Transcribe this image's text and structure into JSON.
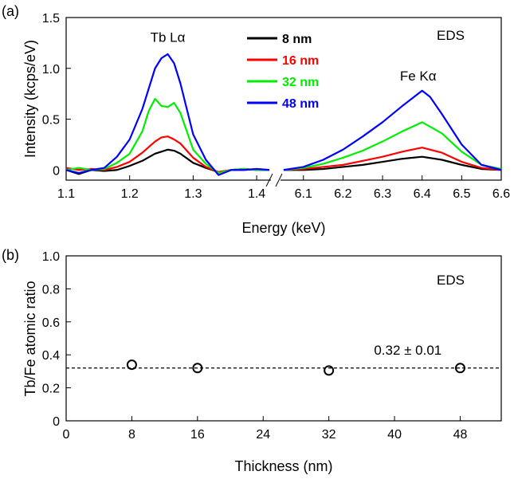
{
  "chart_data": [
    {
      "type": "line",
      "panel_label": "(a)",
      "xlabel": "Energy (keV)",
      "ylabel": "Intensity (kcps/eV)",
      "annotation": "EDS",
      "peak_labels": [
        {
          "text": "Tb Lα",
          "x": 1.26,
          "y": 1.26
        },
        {
          "text": "Fe Kα",
          "x": 6.39,
          "y": 0.88
        }
      ],
      "ylim": [
        -0.1,
        1.5
      ],
      "yticks": [
        0,
        0.5,
        1.0,
        1.5
      ],
      "ytick_labels": [
        "0",
        "0.5",
        "1.0",
        "1.5"
      ],
      "broken_axis": true,
      "segments": [
        {
          "xlim": [
            1.1,
            1.43
          ],
          "xticks": [
            1.1,
            1.2,
            1.3,
            1.4
          ],
          "xtick_labels": [
            "1.1",
            "1.2",
            "1.3",
            "1.4"
          ]
        },
        {
          "xlim": [
            6.03,
            6.6
          ],
          "xticks": [
            6.1,
            6.2,
            6.3,
            6.4,
            6.5,
            6.6
          ],
          "xtick_labels": [
            "6.1",
            "6.2",
            "6.3",
            "6.4",
            "6.5",
            "6.6"
          ]
        }
      ],
      "legend_position": "top-center",
      "series": [
        {
          "name": "8 nm",
          "color": "#000000",
          "low_x": [
            1.1,
            1.12,
            1.14,
            1.16,
            1.18,
            1.2,
            1.22,
            1.24,
            1.25,
            1.26,
            1.27,
            1.28,
            1.3,
            1.32,
            1.34,
            1.36,
            1.38,
            1.4,
            1.42
          ],
          "low_y": [
            0.0,
            -0.04,
            0.0,
            -0.01,
            0.0,
            0.04,
            0.09,
            0.16,
            0.18,
            0.2,
            0.19,
            0.16,
            0.07,
            0.02,
            -0.02,
            0.0,
            0.01,
            0.0,
            0.0
          ],
          "high_x": [
            6.05,
            6.1,
            6.15,
            6.2,
            6.25,
            6.3,
            6.35,
            6.4,
            6.45,
            6.5,
            6.55,
            6.6
          ],
          "high_y": [
            0.0,
            0.0,
            0.01,
            0.03,
            0.05,
            0.08,
            0.11,
            0.13,
            0.1,
            0.05,
            0.01,
            0.0
          ]
        },
        {
          "name": "16 nm",
          "color": "#ff0000",
          "low_x": [
            1.1,
            1.12,
            1.14,
            1.16,
            1.18,
            1.2,
            1.22,
            1.24,
            1.25,
            1.26,
            1.27,
            1.28,
            1.3,
            1.32,
            1.34,
            1.36,
            1.38,
            1.4,
            1.42
          ],
          "low_y": [
            0.02,
            0.0,
            0.01,
            0.0,
            0.03,
            0.08,
            0.17,
            0.28,
            0.32,
            0.33,
            0.3,
            0.26,
            0.12,
            0.03,
            -0.02,
            0.0,
            0.0,
            0.01,
            0.0
          ],
          "high_x": [
            6.05,
            6.1,
            6.15,
            6.2,
            6.25,
            6.3,
            6.35,
            6.4,
            6.45,
            6.5,
            6.55,
            6.6
          ],
          "high_y": [
            0.0,
            0.01,
            0.03,
            0.05,
            0.09,
            0.13,
            0.18,
            0.22,
            0.17,
            0.08,
            0.02,
            0.0
          ]
        },
        {
          "name": "32 nm",
          "color": "#00ee00",
          "low_x": [
            1.1,
            1.12,
            1.14,
            1.16,
            1.18,
            1.2,
            1.22,
            1.23,
            1.24,
            1.25,
            1.26,
            1.27,
            1.28,
            1.29,
            1.3,
            1.32,
            1.34,
            1.36,
            1.38,
            1.4,
            1.42
          ],
          "low_y": [
            0.0,
            0.02,
            0.0,
            0.01,
            0.07,
            0.16,
            0.38,
            0.58,
            0.7,
            0.63,
            0.62,
            0.66,
            0.56,
            0.38,
            0.2,
            0.06,
            -0.03,
            0.0,
            0.01,
            0.0,
            0.0
          ],
          "high_x": [
            6.05,
            6.1,
            6.15,
            6.2,
            6.25,
            6.3,
            6.35,
            6.4,
            6.45,
            6.5,
            6.55,
            6.6
          ],
          "high_y": [
            0.0,
            0.02,
            0.06,
            0.12,
            0.19,
            0.28,
            0.38,
            0.47,
            0.36,
            0.18,
            0.05,
            0.01
          ]
        },
        {
          "name": "48 nm",
          "color": "#0000ff",
          "low_x": [
            1.1,
            1.12,
            1.14,
            1.16,
            1.18,
            1.2,
            1.22,
            1.24,
            1.25,
            1.26,
            1.27,
            1.28,
            1.29,
            1.3,
            1.32,
            1.34,
            1.36,
            1.38,
            1.4,
            1.42
          ],
          "low_y": [
            0.0,
            -0.03,
            0.0,
            0.02,
            0.13,
            0.3,
            0.6,
            1.0,
            1.1,
            1.14,
            1.05,
            0.85,
            0.6,
            0.35,
            0.1,
            -0.05,
            0.0,
            0.0,
            0.01,
            0.0
          ],
          "high_x": [
            6.05,
            6.1,
            6.15,
            6.2,
            6.25,
            6.3,
            6.35,
            6.4,
            6.42,
            6.45,
            6.5,
            6.55,
            6.6
          ],
          "high_y": [
            0.0,
            0.03,
            0.1,
            0.2,
            0.33,
            0.47,
            0.63,
            0.78,
            0.72,
            0.55,
            0.25,
            0.05,
            0.0
          ]
        }
      ]
    },
    {
      "type": "scatter",
      "panel_label": "(b)",
      "xlabel": "Thickness (nm)",
      "ylabel": "Tb/Fe atomic ratio",
      "annotation": "EDS",
      "xlim": [
        0,
        53
      ],
      "ylim": [
        0,
        1.0
      ],
      "xticks": [
        0,
        8,
        16,
        24,
        32,
        40,
        48
      ],
      "xtick_labels": [
        "0",
        "8",
        "16",
        "24",
        "32",
        "40",
        "48"
      ],
      "yticks": [
        0,
        0.2,
        0.4,
        0.6,
        0.8,
        1.0
      ],
      "ytick_labels": [
        "0",
        "0.2",
        "0.4",
        "0.6",
        "0.8",
        "1.0"
      ],
      "x": [
        8,
        16,
        32,
        48
      ],
      "y": [
        0.34,
        0.32,
        0.305,
        0.32
      ],
      "reference_line": {
        "y": 0.32,
        "style": "dashed",
        "label": "0.32 ± 0.01"
      }
    }
  ]
}
